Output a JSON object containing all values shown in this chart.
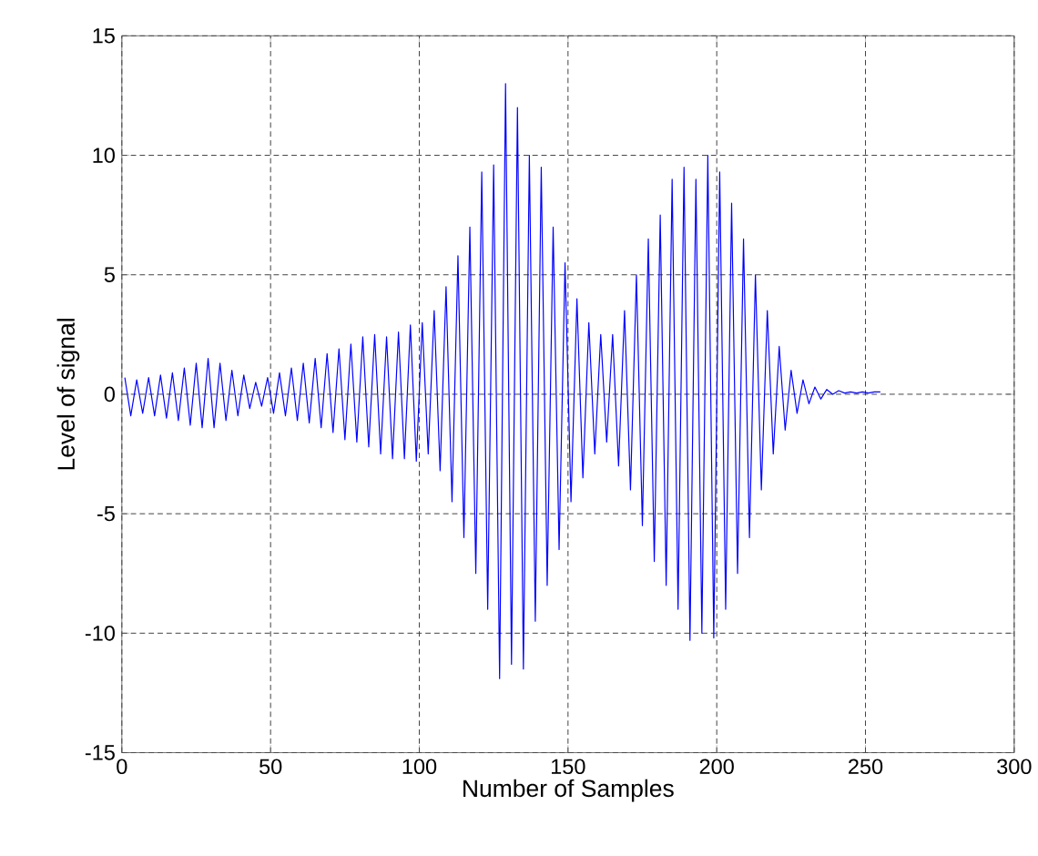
{
  "chart_data": {
    "type": "line",
    "xlabel": "Number of Samples",
    "ylabel": "Level of signal",
    "xlim": [
      0,
      300
    ],
    "ylim": [
      -15,
      15
    ],
    "xticks": [
      0,
      50,
      100,
      150,
      200,
      250,
      300
    ],
    "yticks": [
      -15,
      -10,
      -5,
      0,
      5,
      10,
      15
    ],
    "grid": true,
    "marker": "none",
    "line_style": "solid",
    "x": [
      1,
      3,
      5,
      7,
      9,
      11,
      13,
      15,
      17,
      19,
      21,
      23,
      25,
      27,
      29,
      31,
      33,
      35,
      37,
      39,
      41,
      43,
      45,
      47,
      49,
      51,
      53,
      55,
      57,
      59,
      61,
      63,
      65,
      67,
      69,
      71,
      73,
      75,
      77,
      79,
      81,
      83,
      85,
      87,
      89,
      91,
      93,
      95,
      97,
      99,
      101,
      103,
      105,
      107,
      109,
      111,
      113,
      115,
      117,
      119,
      121,
      123,
      125,
      127,
      129,
      131,
      133,
      135,
      137,
      139,
      141,
      143,
      145,
      147,
      149,
      151,
      153,
      155,
      157,
      159,
      161,
      163,
      165,
      167,
      169,
      171,
      173,
      175,
      177,
      179,
      181,
      183,
      185,
      187,
      189,
      191,
      193,
      195,
      197,
      199,
      201,
      203,
      205,
      207,
      209,
      211,
      213,
      215,
      217,
      219,
      221,
      223,
      225,
      227,
      229,
      231,
      233,
      235,
      237,
      239,
      241,
      243,
      245,
      247,
      249,
      251,
      253,
      255
    ],
    "series": [
      {
        "color": "#0000ff",
        "values": [
          0.7,
          -0.9,
          0.6,
          -0.8,
          0.7,
          -0.9,
          0.8,
          -1.0,
          0.9,
          -1.1,
          1.1,
          -1.3,
          1.3,
          -1.4,
          1.5,
          -1.4,
          1.3,
          -1.1,
          1.0,
          -0.9,
          0.8,
          -0.6,
          0.5,
          -0.5,
          0.7,
          -0.8,
          0.9,
          -0.9,
          1.1,
          -1.1,
          1.3,
          -1.2,
          1.5,
          -1.4,
          1.7,
          -1.6,
          1.9,
          -1.9,
          2.1,
          -2.0,
          2.4,
          -2.2,
          2.5,
          -2.5,
          2.4,
          -2.7,
          2.6,
          -2.7,
          2.9,
          -2.8,
          3.0,
          -2.5,
          3.5,
          -3.2,
          4.5,
          -4.5,
          5.8,
          -6.0,
          7.0,
          -7.5,
          9.3,
          -9.0,
          9.6,
          -11.9,
          13.0,
          -11.3,
          12.0,
          -11.5,
          10.0,
          -9.5,
          9.5,
          -8.0,
          7.0,
          -6.5,
          5.5,
          -4.5,
          4.0,
          -3.5,
          3.0,
          -2.5,
          2.5,
          -2.0,
          2.5,
          -3.0,
          3.5,
          -4.0,
          5.0,
          -5.5,
          6.5,
          -7.0,
          7.5,
          -8.0,
          9.0,
          -9.0,
          9.5,
          -10.3,
          9.0,
          -10.0,
          10.0,
          -10.2,
          9.3,
          -9.0,
          8.0,
          -7.5,
          6.5,
          -6.0,
          5.0,
          -4.0,
          3.5,
          -2.5,
          2.0,
          -1.5,
          1.0,
          -0.8,
          0.6,
          -0.4,
          0.3,
          -0.2,
          0.2,
          0.0,
          0.15,
          0.05,
          0.1,
          0.05,
          0.1,
          0.05,
          0.1,
          0.1
        ]
      }
    ]
  }
}
